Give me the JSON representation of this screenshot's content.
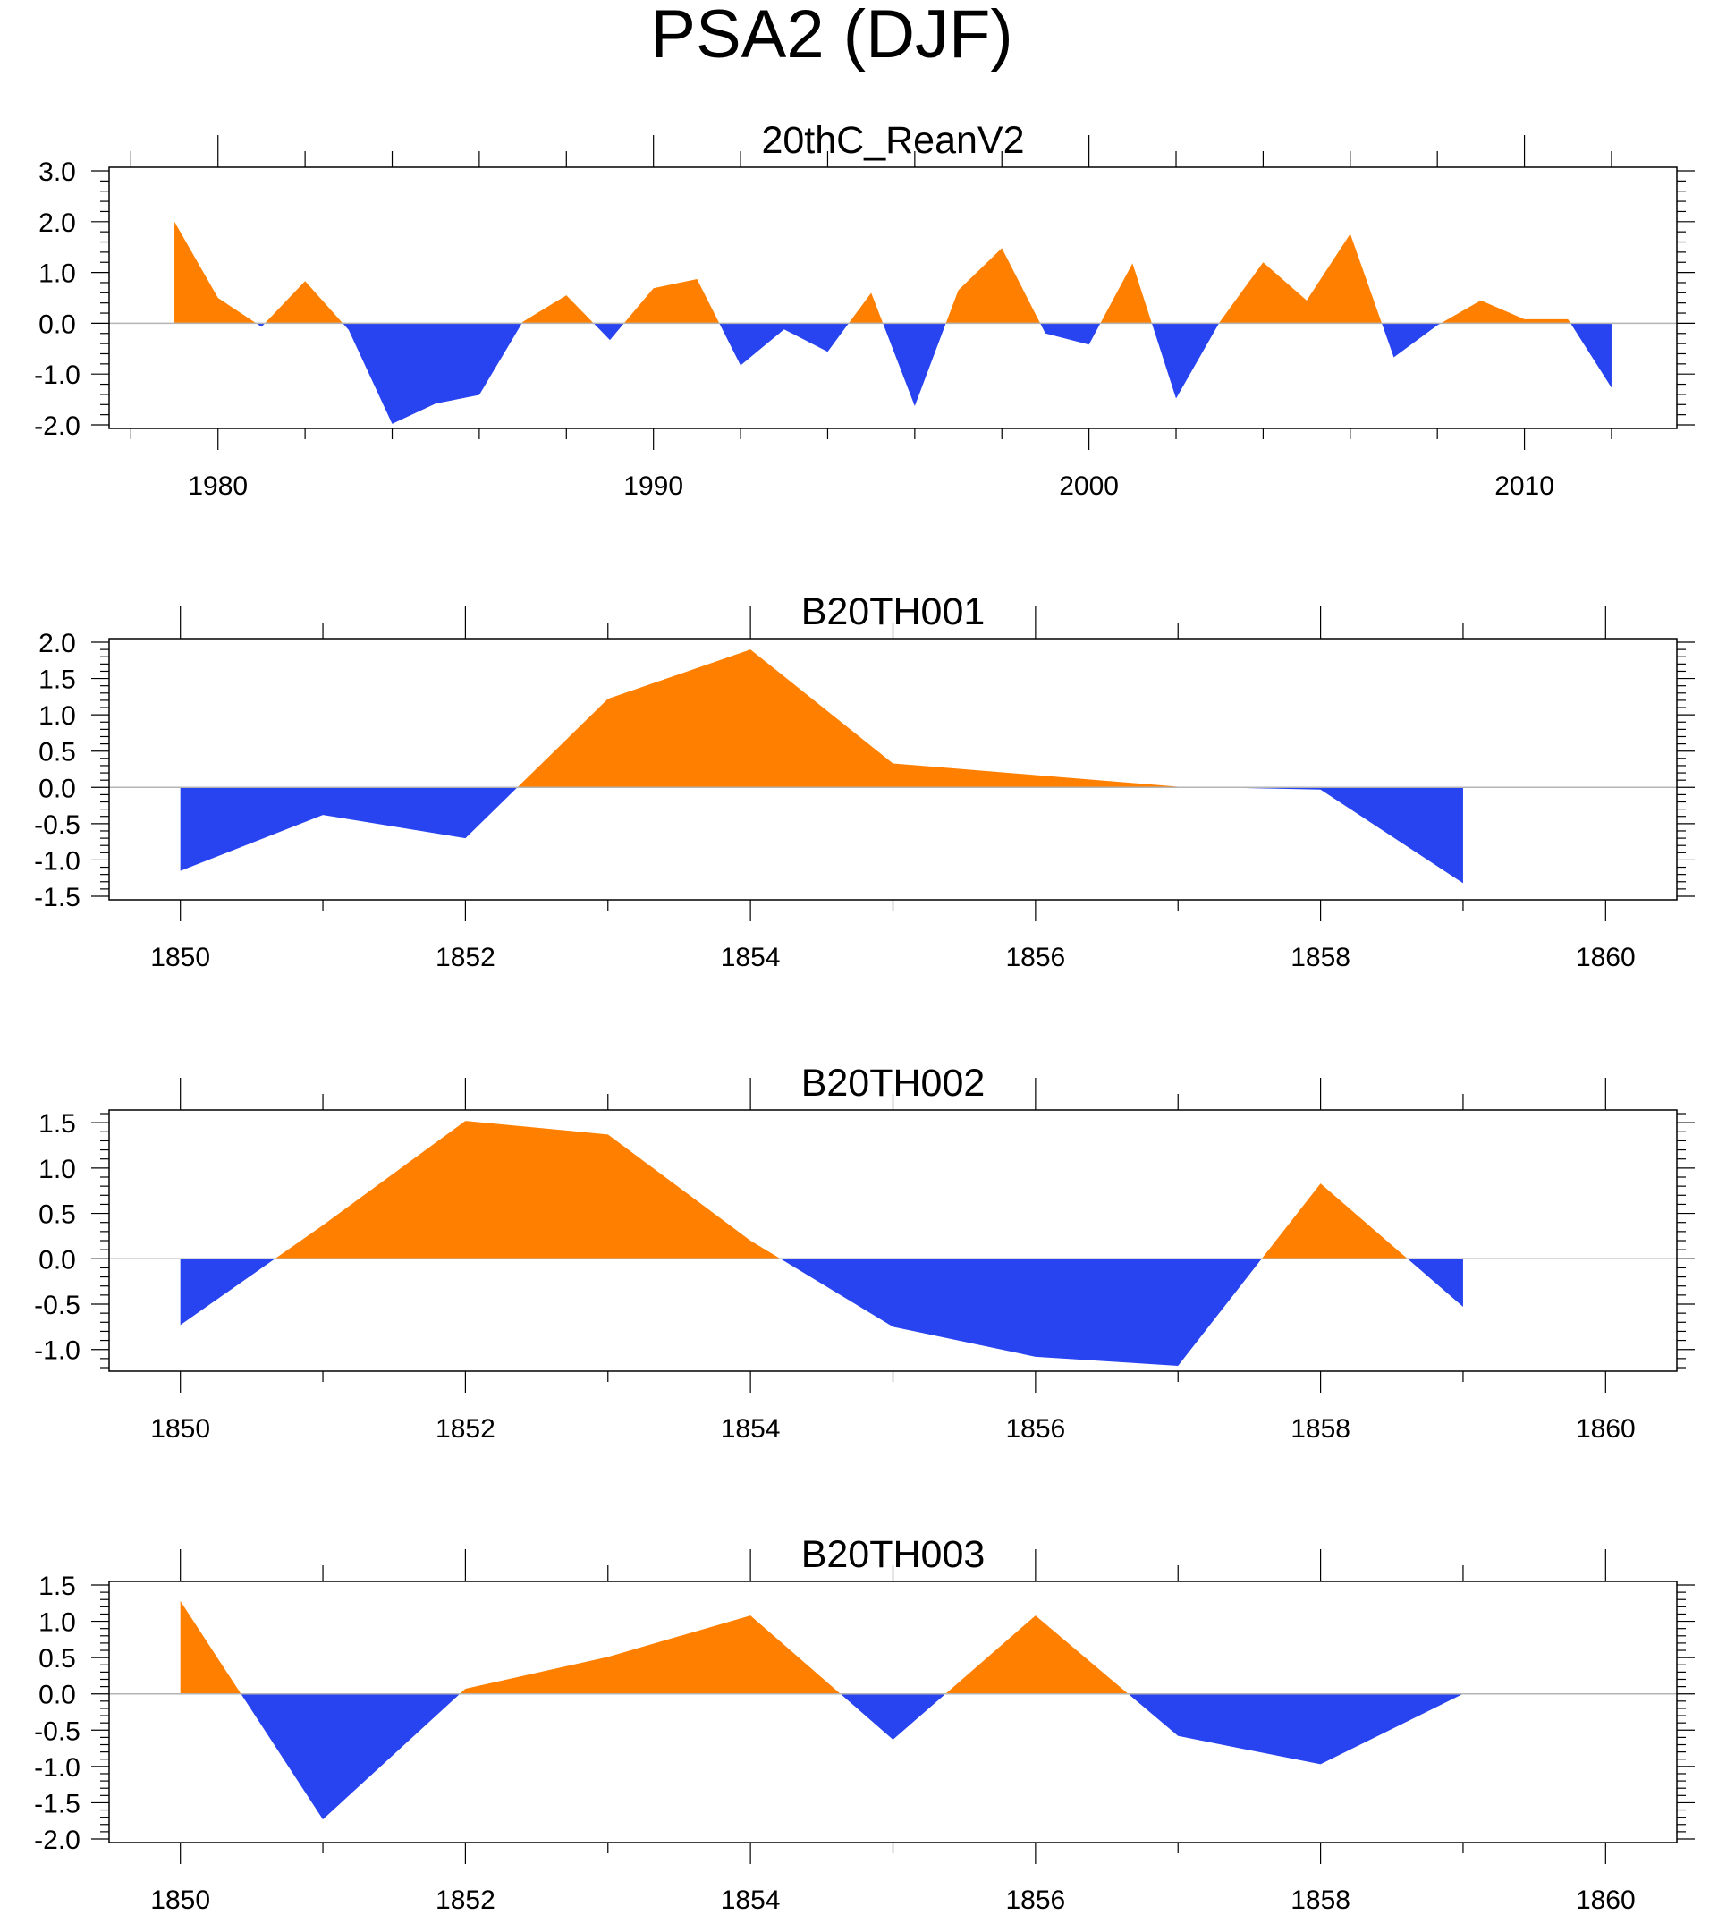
{
  "figure_title": "PSA2 (DJF)",
  "colors": {
    "positive": "#ff8000",
    "negative": "#2843f0",
    "axis": "#000000",
    "zero_line": "#b4b4b4"
  },
  "chart_data": [
    {
      "type": "area",
      "title": "20thC_ReanV2",
      "xlabel": "",
      "ylabel": "",
      "xlim": [
        1977.5,
        2013.5
      ],
      "ylim": [
        -2.0,
        3.0
      ],
      "xticks": [
        1980,
        1990,
        2000,
        2010
      ],
      "xtick_labels": [
        "1980",
        "1990",
        "2000",
        "2010"
      ],
      "xminor": [
        1978,
        1982,
        1984,
        1986,
        1988,
        1992,
        1994,
        1996,
        1998,
        2002,
        2004,
        2006,
        2008,
        2012
      ],
      "yticks": [
        -2.0,
        -1.0,
        0.0,
        1.0,
        2.0,
        3.0
      ],
      "ytick_labels": [
        "-2.0",
        "-1.0",
        "0.0",
        "1.0",
        "2.0",
        "3.0"
      ],
      "yminor_step": 0.2,
      "x": [
        1979,
        1980,
        1981,
        1982,
        1983,
        1984,
        1985,
        1986,
        1987,
        1988,
        1989,
        1990,
        1991,
        1992,
        1993,
        1994,
        1995,
        1996,
        1997,
        1998,
        1999,
        2000,
        2001,
        2002,
        2003,
        2004,
        2005,
        2006,
        2007,
        2008,
        2009,
        2010,
        2011,
        2012
      ],
      "values": [
        2.0,
        0.5,
        -0.07,
        0.83,
        -0.13,
        -1.98,
        -1.58,
        -1.41,
        0.03,
        0.55,
        -0.33,
        0.69,
        0.87,
        -0.83,
        -0.12,
        -0.56,
        0.6,
        -1.63,
        0.65,
        1.48,
        -0.2,
        -0.42,
        1.18,
        -1.48,
        0.02,
        1.2,
        0.45,
        1.76,
        -0.67,
        -0.04,
        0.45,
        0.08,
        0.08,
        -1.27
      ]
    },
    {
      "type": "area",
      "title": "B20TH001",
      "xlabel": "",
      "ylabel": "",
      "xlim": [
        1849.5,
        1860.5
      ],
      "ylim": [
        -1.5,
        2.0
      ],
      "xticks": [
        1850,
        1852,
        1854,
        1856,
        1858,
        1860
      ],
      "xtick_labels": [
        "1850",
        "1852",
        "1854",
        "1856",
        "1858",
        "1860"
      ],
      "xminor": [
        1851,
        1853,
        1855,
        1857,
        1859
      ],
      "yticks": [
        -1.5,
        -1.0,
        -0.5,
        0.0,
        0.5,
        1.0,
        1.5,
        2.0
      ],
      "ytick_labels": [
        "-1.5",
        "-1.0",
        "-0.5",
        "0.0",
        "0.5",
        "1.0",
        "1.5",
        "2.0"
      ],
      "yminor_step": 0.1,
      "x": [
        1850,
        1851,
        1852,
        1853,
        1854,
        1855,
        1856,
        1857,
        1858,
        1859
      ],
      "values": [
        -1.15,
        -0.38,
        -0.7,
        1.22,
        1.9,
        0.33,
        0.17,
        0.01,
        -0.03,
        -1.32
      ]
    },
    {
      "type": "area",
      "title": "B20TH002",
      "xlabel": "",
      "ylabel": "",
      "xlim": [
        1849.5,
        1860.5
      ],
      "ylim": [
        -1.2,
        1.6
      ],
      "xticks": [
        1850,
        1852,
        1854,
        1856,
        1858,
        1860
      ],
      "xtick_labels": [
        "1850",
        "1852",
        "1854",
        "1856",
        "1858",
        "1860"
      ],
      "xminor": [
        1851,
        1853,
        1855,
        1857,
        1859
      ],
      "yticks": [
        -1.0,
        -0.5,
        0.0,
        0.5,
        1.0,
        1.5
      ],
      "ytick_labels": [
        "-1.0",
        "-0.5",
        "0.0",
        "0.5",
        "1.0",
        "1.5"
      ],
      "yminor_step": 0.1,
      "x": [
        1850,
        1851,
        1852,
        1853,
        1854,
        1855,
        1856,
        1857,
        1858,
        1859
      ],
      "values": [
        -0.73,
        0.37,
        1.52,
        1.37,
        0.2,
        -0.75,
        -1.08,
        -1.18,
        0.83,
        -0.53
      ]
    },
    {
      "type": "area",
      "title": "B20TH003",
      "xlabel": "",
      "ylabel": "",
      "xlim": [
        1849.5,
        1860.5
      ],
      "ylim": [
        -2.0,
        1.5
      ],
      "xticks": [
        1850,
        1852,
        1854,
        1856,
        1858,
        1860
      ],
      "xtick_labels": [
        "1850",
        "1852",
        "1854",
        "1856",
        "1858",
        "1860"
      ],
      "xminor": [
        1851,
        1853,
        1855,
        1857,
        1859
      ],
      "yticks": [
        -2.0,
        -1.5,
        -1.0,
        -0.5,
        0.0,
        0.5,
        1.0,
        1.5
      ],
      "ytick_labels": [
        "-2.0",
        "-1.5",
        "-1.0",
        "-0.5",
        "0.0",
        "0.5",
        "1.0",
        "1.5"
      ],
      "yminor_step": 0.1,
      "x": [
        1850,
        1851,
        1852,
        1853,
        1854,
        1855,
        1856,
        1857,
        1858,
        1859
      ],
      "values": [
        1.28,
        -1.73,
        0.07,
        0.51,
        1.08,
        -0.63,
        1.08,
        -0.58,
        -0.97,
        0.0
      ]
    }
  ]
}
